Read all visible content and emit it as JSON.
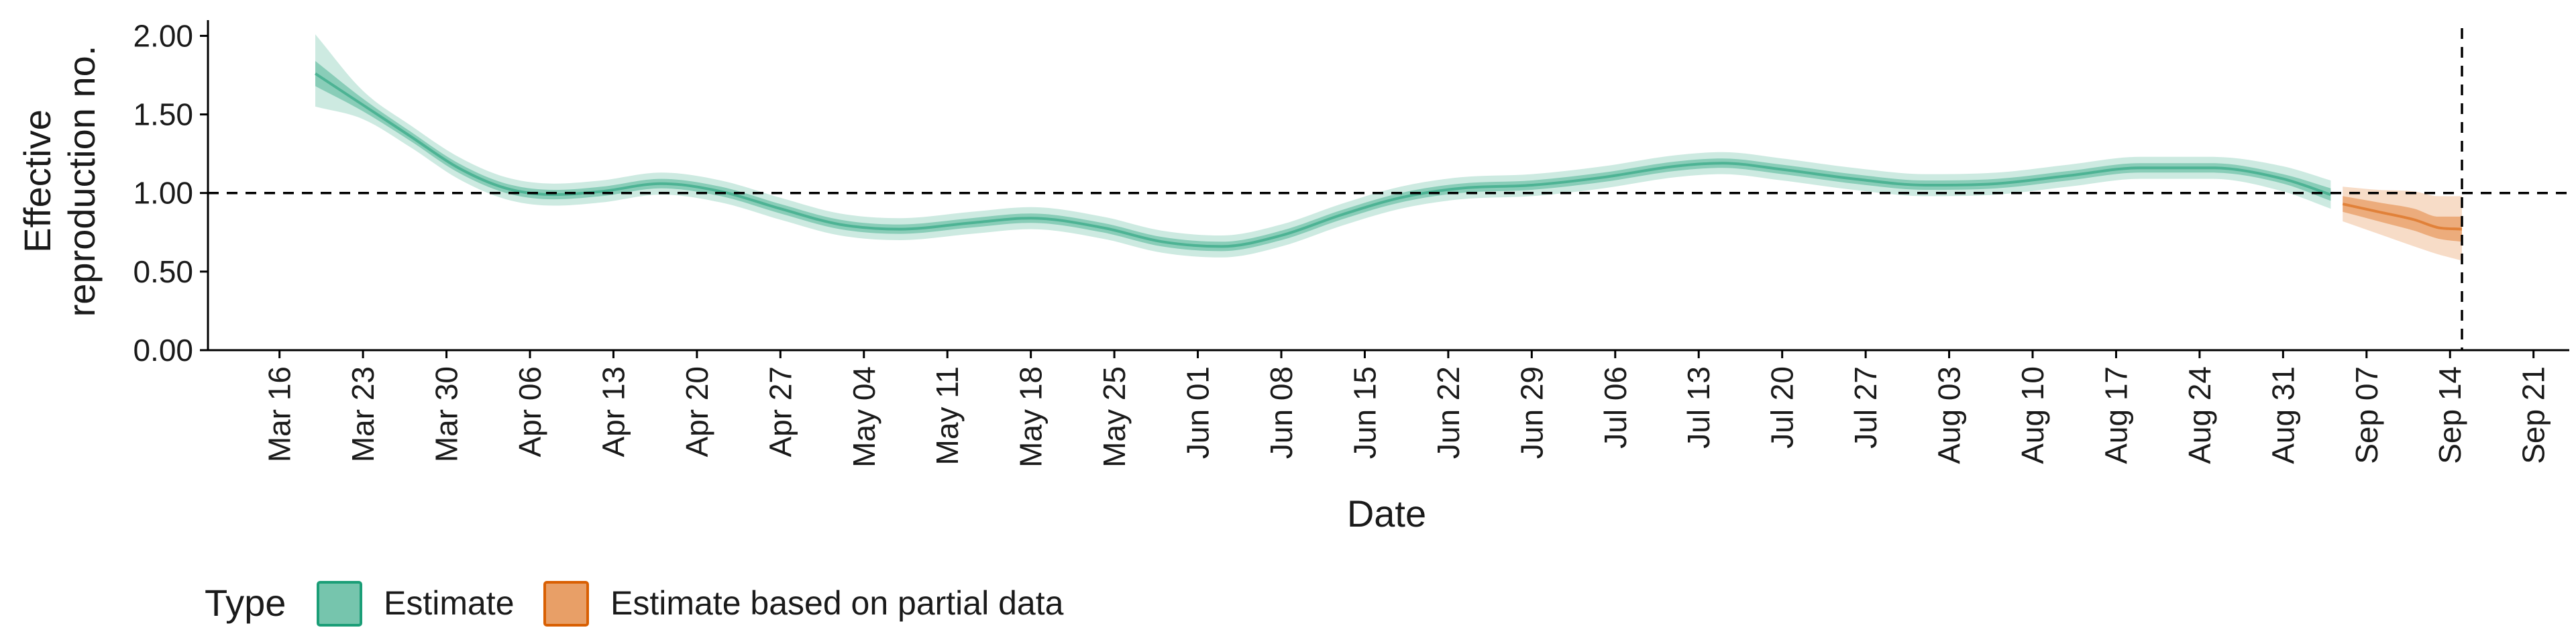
{
  "chart_data": {
    "type": "area",
    "xlabel": "Date",
    "ylabel": [
      "Effective",
      "reproduction no."
    ],
    "ylim": [
      0,
      2.1
    ],
    "xlim": [
      "2020-03-10",
      "2020-09-24"
    ],
    "y_ticks": [
      0,
      0.5,
      1.0,
      1.5,
      2.0
    ],
    "y_tick_labels": [
      "0.00",
      "0.50",
      "1.00",
      "1.50",
      "2.00"
    ],
    "x_ticks": [
      "2020-03-16",
      "2020-03-23",
      "2020-03-30",
      "2020-04-06",
      "2020-04-13",
      "2020-04-20",
      "2020-04-27",
      "2020-05-04",
      "2020-05-11",
      "2020-05-18",
      "2020-05-25",
      "2020-06-01",
      "2020-06-08",
      "2020-06-15",
      "2020-06-22",
      "2020-06-29",
      "2020-07-06",
      "2020-07-13",
      "2020-07-20",
      "2020-07-27",
      "2020-08-03",
      "2020-08-10",
      "2020-08-17",
      "2020-08-24",
      "2020-08-31",
      "2020-09-07",
      "2020-09-14",
      "2020-09-21"
    ],
    "x_tick_labels": [
      "Mar 16",
      "Mar 23",
      "Mar 30",
      "Apr 06",
      "Apr 13",
      "Apr 20",
      "Apr 27",
      "May 04",
      "May 11",
      "May 18",
      "May 25",
      "Jun 01",
      "Jun 08",
      "Jun 15",
      "Jun 22",
      "Jun 29",
      "Jul 06",
      "Jul 13",
      "Jul 20",
      "Jul 27",
      "Aug 03",
      "Aug 10",
      "Aug 17",
      "Aug 24",
      "Aug 31",
      "Sep 07",
      "Sep 14",
      "Sep 21"
    ],
    "reference_hline": 1.0,
    "reference_vline": "2020-09-15",
    "grid": false,
    "legend_position": "bottom-left",
    "legend_title": "Type",
    "series": [
      {
        "name": "Estimate",
        "color": "#1b9e77",
        "points": [
          {
            "x": "2020-03-19",
            "median": 1.76,
            "lo50": 1.68,
            "hi50": 1.84,
            "lo90": 1.55,
            "hi90": 2.01
          },
          {
            "x": "2020-03-23",
            "median": 1.56,
            "lo50": 1.52,
            "hi50": 1.6,
            "lo90": 1.47,
            "hi90": 1.65
          },
          {
            "x": "2020-03-27",
            "median": 1.36,
            "lo50": 1.33,
            "hi50": 1.39,
            "lo90": 1.29,
            "hi90": 1.43
          },
          {
            "x": "2020-03-31",
            "median": 1.16,
            "lo50": 1.13,
            "hi50": 1.19,
            "lo90": 1.09,
            "hi90": 1.23
          },
          {
            "x": "2020-04-04",
            "median": 1.03,
            "lo50": 1.0,
            "hi50": 1.06,
            "lo90": 0.96,
            "hi90": 1.1
          },
          {
            "x": "2020-04-08",
            "median": 0.99,
            "lo50": 0.96,
            "hi50": 1.02,
            "lo90": 0.92,
            "hi90": 1.06
          },
          {
            "x": "2020-04-12",
            "median": 1.01,
            "lo50": 0.98,
            "hi50": 1.04,
            "lo90": 0.94,
            "hi90": 1.08
          },
          {
            "x": "2020-04-17",
            "median": 1.06,
            "lo50": 1.03,
            "hi50": 1.09,
            "lo90": 0.99,
            "hi90": 1.13
          },
          {
            "x": "2020-04-22",
            "median": 1.01,
            "lo50": 0.98,
            "hi50": 1.04,
            "lo90": 0.94,
            "hi90": 1.08
          },
          {
            "x": "2020-04-27",
            "median": 0.9,
            "lo50": 0.87,
            "hi50": 0.93,
            "lo90": 0.83,
            "hi90": 0.97
          },
          {
            "x": "2020-05-02",
            "median": 0.8,
            "lo50": 0.77,
            "hi50": 0.83,
            "lo90": 0.73,
            "hi90": 0.87
          },
          {
            "x": "2020-05-07",
            "median": 0.77,
            "lo50": 0.74,
            "hi50": 0.8,
            "lo90": 0.7,
            "hi90": 0.84
          },
          {
            "x": "2020-05-13",
            "median": 0.81,
            "lo50": 0.78,
            "hi50": 0.84,
            "lo90": 0.74,
            "hi90": 0.88
          },
          {
            "x": "2020-05-18",
            "median": 0.84,
            "lo50": 0.81,
            "hi50": 0.87,
            "lo90": 0.77,
            "hi90": 0.91
          },
          {
            "x": "2020-05-24",
            "median": 0.78,
            "lo50": 0.75,
            "hi50": 0.81,
            "lo90": 0.71,
            "hi90": 0.85
          },
          {
            "x": "2020-05-29",
            "median": 0.69,
            "lo50": 0.66,
            "hi50": 0.72,
            "lo90": 0.62,
            "hi90": 0.76
          },
          {
            "x": "2020-06-03",
            "median": 0.66,
            "lo50": 0.63,
            "hi50": 0.69,
            "lo90": 0.59,
            "hi90": 0.73
          },
          {
            "x": "2020-06-08",
            "median": 0.73,
            "lo50": 0.7,
            "hi50": 0.76,
            "lo90": 0.66,
            "hi90": 0.8
          },
          {
            "x": "2020-06-13",
            "median": 0.86,
            "lo50": 0.83,
            "hi50": 0.89,
            "lo90": 0.79,
            "hi90": 0.93
          },
          {
            "x": "2020-06-18",
            "median": 0.97,
            "lo50": 0.94,
            "hi50": 1.0,
            "lo90": 0.9,
            "hi90": 1.04
          },
          {
            "x": "2020-06-23",
            "median": 1.03,
            "lo50": 1.0,
            "hi50": 1.06,
            "lo90": 0.96,
            "hi90": 1.1
          },
          {
            "x": "2020-06-29",
            "median": 1.05,
            "lo50": 1.02,
            "hi50": 1.08,
            "lo90": 0.98,
            "hi90": 1.12
          },
          {
            "x": "2020-07-05",
            "median": 1.1,
            "lo50": 1.07,
            "hi50": 1.13,
            "lo90": 1.03,
            "hi90": 1.17
          },
          {
            "x": "2020-07-11",
            "median": 1.17,
            "lo50": 1.14,
            "hi50": 1.2,
            "lo90": 1.1,
            "hi90": 1.24
          },
          {
            "x": "2020-07-15",
            "median": 1.19,
            "lo50": 1.16,
            "hi50": 1.22,
            "lo90": 1.12,
            "hi90": 1.26
          },
          {
            "x": "2020-07-20",
            "median": 1.15,
            "lo50": 1.12,
            "hi50": 1.18,
            "lo90": 1.08,
            "hi90": 1.22
          },
          {
            "x": "2020-07-26",
            "median": 1.09,
            "lo50": 1.06,
            "hi50": 1.12,
            "lo90": 1.02,
            "hi90": 1.16
          },
          {
            "x": "2020-08-01",
            "median": 1.05,
            "lo50": 1.02,
            "hi50": 1.08,
            "lo90": 0.98,
            "hi90": 1.12
          },
          {
            "x": "2020-08-07",
            "median": 1.06,
            "lo50": 1.03,
            "hi50": 1.09,
            "lo90": 0.99,
            "hi90": 1.13
          },
          {
            "x": "2020-08-13",
            "median": 1.11,
            "lo50": 1.08,
            "hi50": 1.14,
            "lo90": 1.04,
            "hi90": 1.18
          },
          {
            "x": "2020-08-19",
            "median": 1.16,
            "lo50": 1.13,
            "hi50": 1.19,
            "lo90": 1.09,
            "hi90": 1.23
          },
          {
            "x": "2020-08-25",
            "median": 1.16,
            "lo50": 1.13,
            "hi50": 1.19,
            "lo90": 1.09,
            "hi90": 1.23
          },
          {
            "x": "2020-08-31",
            "median": 1.09,
            "lo50": 1.06,
            "hi50": 1.12,
            "lo90": 1.01,
            "hi90": 1.17
          },
          {
            "x": "2020-09-04",
            "median": 0.99,
            "lo50": 0.95,
            "hi50": 1.03,
            "lo90": 0.9,
            "hi90": 1.08
          }
        ]
      },
      {
        "name": "Estimate based on partial data",
        "color": "#d95f02",
        "points": [
          {
            "x": "2020-09-05",
            "median": 0.93,
            "lo50": 0.88,
            "hi50": 0.98,
            "lo90": 0.82,
            "hi90": 1.04
          },
          {
            "x": "2020-09-08",
            "median": 0.88,
            "lo50": 0.82,
            "hi50": 0.94,
            "lo90": 0.74,
            "hi90": 1.02
          },
          {
            "x": "2020-09-11",
            "median": 0.83,
            "lo50": 0.76,
            "hi50": 0.9,
            "lo90": 0.66,
            "hi90": 1.01
          },
          {
            "x": "2020-09-13",
            "median": 0.78,
            "lo50": 0.71,
            "hi50": 0.85,
            "lo90": 0.61,
            "hi90": 0.98
          },
          {
            "x": "2020-09-15",
            "median": 0.77,
            "lo50": 0.69,
            "hi50": 0.85,
            "lo90": 0.57,
            "hi90": 0.98
          }
        ]
      }
    ]
  }
}
